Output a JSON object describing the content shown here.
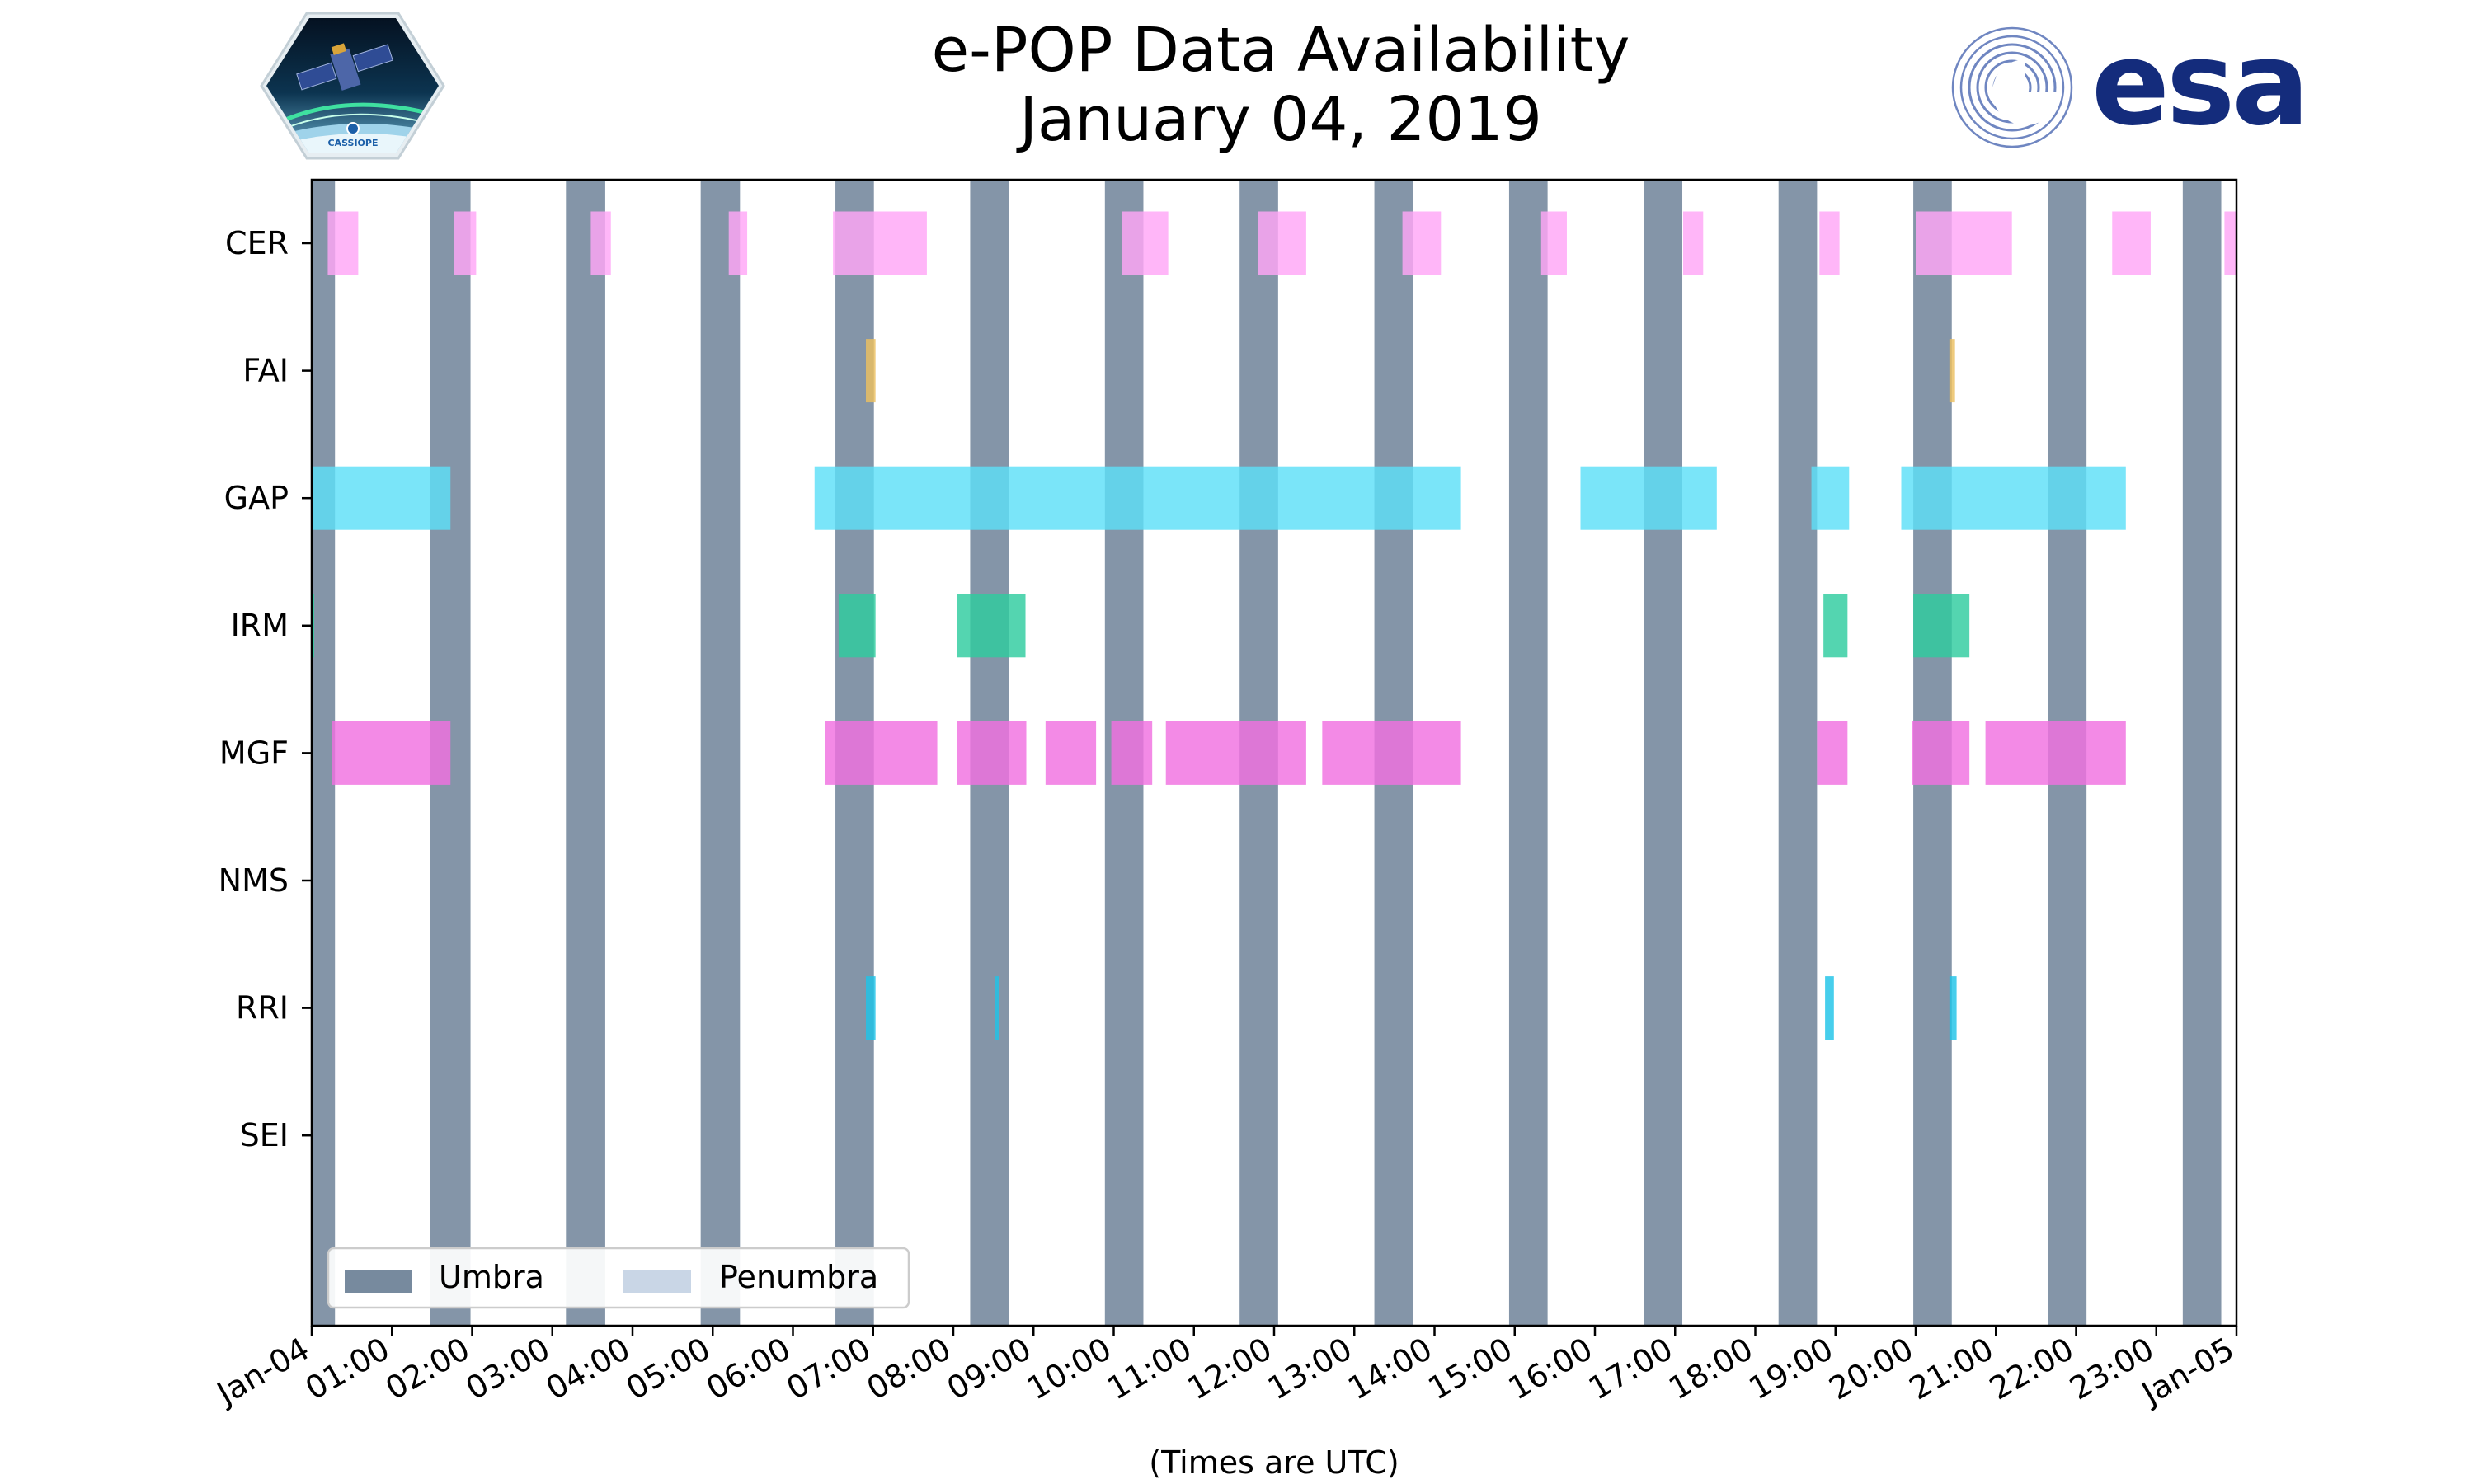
{
  "chart_data": {
    "type": "timeline",
    "title": "e-POP Data Availability",
    "subtitle": "January 04, 2019",
    "xlabel": "(Times are UTC)",
    "x_unit": "hours (UTC)",
    "xlim": [
      0,
      24
    ],
    "x_tick_labels": [
      "Jan-04",
      "01:00",
      "02:00",
      "03:00",
      "04:00",
      "05:00",
      "06:00",
      "07:00",
      "08:00",
      "09:00",
      "10:00",
      "11:00",
      "12:00",
      "13:00",
      "14:00",
      "15:00",
      "16:00",
      "17:00",
      "18:00",
      "19:00",
      "20:00",
      "21:00",
      "22:00",
      "23:00",
      "Jan-05"
    ],
    "categories": [
      "CER",
      "FAI",
      "GAP",
      "IRM",
      "MGF",
      "NMS",
      "RRI",
      "SEI"
    ],
    "colors": {
      "umbra": "#778a9e",
      "penumbra": "#c9d6e6",
      "CER": "#ffa6f7",
      "FAI": "#ebc060",
      "GAP": "#5ddff8",
      "IRM": "#2ecc9f",
      "MGF": "#f070e0",
      "RRI": "#1ec3e8"
    },
    "legend": {
      "position": "lower-left",
      "items": [
        {
          "label": "Umbra",
          "color": "#778a9e"
        },
        {
          "label": "Penumbra",
          "color": "#c9d6e6"
        }
      ]
    },
    "umbra_intervals": [
      [
        0.0,
        0.29
      ],
      [
        1.48,
        1.98
      ],
      [
        3.17,
        3.66
      ],
      [
        4.85,
        5.34
      ],
      [
        6.53,
        7.01
      ],
      [
        8.21,
        8.69
      ],
      [
        9.89,
        10.37
      ],
      [
        11.57,
        12.05
      ],
      [
        13.25,
        13.73
      ],
      [
        14.93,
        15.41
      ],
      [
        16.61,
        17.09
      ],
      [
        18.29,
        18.77
      ],
      [
        19.97,
        20.45
      ],
      [
        21.65,
        22.13
      ],
      [
        23.33,
        23.81
      ]
    ],
    "series": [
      {
        "name": "CER",
        "intervals": [
          [
            0.2,
            0.58
          ],
          [
            1.77,
            2.05
          ],
          [
            3.48,
            3.73
          ],
          [
            5.2,
            5.43
          ],
          [
            6.5,
            7.67
          ],
          [
            10.1,
            10.68
          ],
          [
            11.8,
            12.4
          ],
          [
            13.6,
            14.08
          ],
          [
            15.33,
            15.65
          ],
          [
            17.1,
            17.35
          ],
          [
            18.8,
            19.05
          ],
          [
            20.0,
            21.2
          ],
          [
            22.45,
            22.93
          ],
          [
            23.85,
            24.0
          ]
        ]
      },
      {
        "name": "FAI",
        "intervals": [
          [
            6.91,
            7.03
          ],
          [
            20.42,
            20.49
          ]
        ]
      },
      {
        "name": "GAP",
        "intervals": [
          [
            0.0,
            1.73
          ],
          [
            6.27,
            14.33
          ],
          [
            15.82,
            17.52
          ],
          [
            18.7,
            19.17
          ],
          [
            19.82,
            22.62
          ]
        ]
      },
      {
        "name": "IRM",
        "intervals": [
          [
            0.0,
            0.03
          ],
          [
            6.57,
            7.03
          ],
          [
            8.05,
            8.9
          ],
          [
            18.85,
            19.15
          ],
          [
            19.97,
            20.67
          ]
        ]
      },
      {
        "name": "MGF",
        "intervals": [
          [
            0.25,
            1.73
          ],
          [
            6.4,
            7.8
          ],
          [
            8.05,
            8.91
          ],
          [
            9.15,
            9.78
          ],
          [
            9.97,
            10.48
          ],
          [
            10.65,
            12.4
          ],
          [
            12.6,
            14.33
          ],
          [
            18.77,
            19.15
          ],
          [
            19.95,
            20.67
          ],
          [
            20.87,
            22.62
          ]
        ]
      },
      {
        "name": "NMS",
        "intervals": []
      },
      {
        "name": "RRI",
        "intervals": [
          [
            6.91,
            7.03
          ],
          [
            8.52,
            8.57
          ],
          [
            18.87,
            18.98
          ],
          [
            20.42,
            20.51
          ]
        ]
      },
      {
        "name": "SEI",
        "intervals": []
      }
    ]
  },
  "logos": {
    "left": {
      "name": "CASSIOPE",
      "text": "CASSIOPE"
    },
    "right": {
      "name": "esa",
      "text": "esa"
    }
  }
}
